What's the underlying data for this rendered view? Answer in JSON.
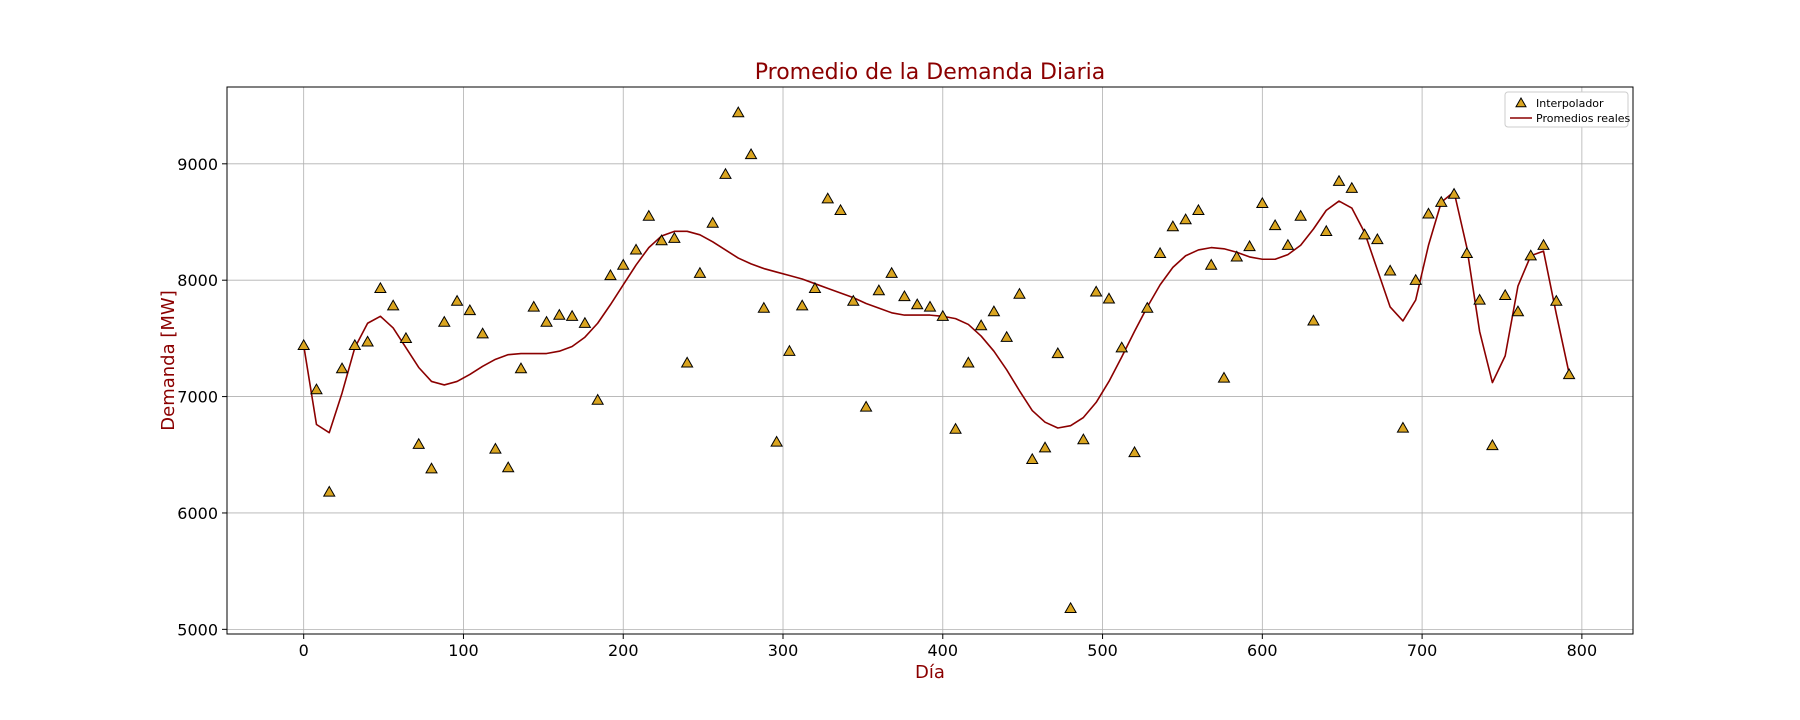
{
  "chart_data": {
    "type": "line",
    "title": "Promedio de la Demanda Diaria",
    "xlabel": "Día",
    "ylabel": "Demanda [MW]",
    "xlim": [
      -48,
      832
    ],
    "ylim": [
      4960,
      9660
    ],
    "xticks": [
      0,
      100,
      200,
      300,
      400,
      500,
      600,
      700,
      800
    ],
    "yticks": [
      5000,
      6000,
      7000,
      8000,
      9000
    ],
    "grid": true,
    "legend_position": "top-right",
    "colors": {
      "title": "#8b0000",
      "axis_label": "#8b0000",
      "line": "#8b0000",
      "marker_fill": "#daa520",
      "marker_edge": "#000000",
      "grid": "#b0b0b0"
    },
    "series": [
      {
        "name": "Interpolador",
        "kind": "scatter",
        "marker": "triangle",
        "x": [
          0,
          8,
          16,
          24,
          32,
          40,
          48,
          56,
          64,
          72,
          80,
          88,
          96,
          104,
          112,
          120,
          128,
          136,
          144,
          152,
          160,
          168,
          176,
          184,
          192,
          200,
          208,
          216,
          224,
          232,
          240,
          248,
          256,
          264,
          272,
          280,
          288,
          296,
          304,
          312,
          320,
          328,
          336,
          344,
          352,
          360,
          368,
          376,
          384,
          392,
          400,
          408,
          416,
          424,
          432,
          440,
          448,
          456,
          464,
          472,
          480,
          488,
          496,
          504,
          512,
          520,
          528,
          536,
          544,
          552,
          560,
          568,
          576,
          584,
          592,
          600,
          608,
          616,
          624,
          632,
          640,
          648,
          656,
          664,
          672,
          680,
          688,
          696,
          704,
          712,
          720,
          728,
          736,
          744,
          752,
          760,
          768,
          776,
          784,
          792
        ],
        "y": [
          7440,
          7060,
          6180,
          7240,
          7440,
          7470,
          7930,
          7780,
          7500,
          6590,
          6380,
          7640,
          7820,
          7740,
          7540,
          6550,
          6390,
          7240,
          7770,
          7640,
          7700,
          7690,
          7630,
          6970,
          8040,
          8130,
          8260,
          8550,
          8340,
          8360,
          7290,
          8060,
          8490,
          8910,
          9440,
          9080,
          7760,
          6610,
          7390,
          7780,
          7930,
          8700,
          8600,
          7820,
          6910,
          7910,
          8060,
          7860,
          7790,
          7770,
          7690,
          6720,
          7290,
          7610,
          7730,
          7510,
          7880,
          6460,
          6560,
          7370,
          5180,
          6630,
          7900,
          7840,
          7420,
          6520,
          7760,
          8230,
          8460,
          8520,
          8600,
          8130,
          7160,
          8200,
          8290,
          8660,
          8470,
          8300,
          8550,
          7650,
          8420,
          8850,
          8790,
          8390,
          8350,
          8080,
          6730,
          8000,
          8570,
          8670,
          8740,
          8230,
          7830,
          6580,
          7870,
          7730,
          8210,
          8300,
          7820,
          7190
        ]
      },
      {
        "name": "Promedios reales",
        "kind": "line",
        "x": [
          0,
          8,
          16,
          24,
          32,
          40,
          48,
          56,
          64,
          72,
          80,
          88,
          96,
          104,
          112,
          120,
          128,
          136,
          144,
          152,
          160,
          168,
          176,
          184,
          192,
          200,
          208,
          216,
          224,
          232,
          240,
          248,
          256,
          264,
          272,
          280,
          288,
          296,
          304,
          312,
          320,
          328,
          336,
          344,
          352,
          360,
          368,
          376,
          384,
          392,
          400,
          408,
          416,
          424,
          432,
          440,
          448,
          456,
          464,
          472,
          480,
          488,
          496,
          504,
          512,
          520,
          528,
          536,
          544,
          552,
          560,
          568,
          576,
          584,
          592,
          600,
          608,
          616,
          624,
          632,
          640,
          648,
          656,
          664,
          672,
          680,
          688,
          696,
          704,
          712,
          720,
          728,
          736,
          744,
          752,
          760,
          768,
          776,
          784,
          792
        ],
        "y": [
          7440,
          6760,
          6690,
          7030,
          7420,
          7630,
          7690,
          7590,
          7420,
          7250,
          7130,
          7100,
          7130,
          7190,
          7260,
          7320,
          7360,
          7370,
          7370,
          7370,
          7390,
          7430,
          7510,
          7630,
          7790,
          7960,
          8130,
          8280,
          8380,
          8420,
          8420,
          8390,
          8330,
          8260,
          8190,
          8140,
          8100,
          8070,
          8040,
          8010,
          7970,
          7930,
          7890,
          7850,
          7800,
          7760,
          7720,
          7700,
          7700,
          7700,
          7690,
          7670,
          7620,
          7520,
          7390,
          7230,
          7050,
          6880,
          6780,
          6730,
          6750,
          6820,
          6950,
          7130,
          7340,
          7560,
          7770,
          7960,
          8110,
          8210,
          8260,
          8280,
          8270,
          8240,
          8200,
          8180,
          8180,
          8220,
          8300,
          8440,
          8600,
          8680,
          8620,
          8410,
          8090,
          7770,
          7650,
          7830,
          8300,
          8670,
          8760,
          8280,
          7560,
          7120,
          7350,
          7950,
          8210,
          8250,
          7710,
          7200
        ]
      }
    ]
  }
}
